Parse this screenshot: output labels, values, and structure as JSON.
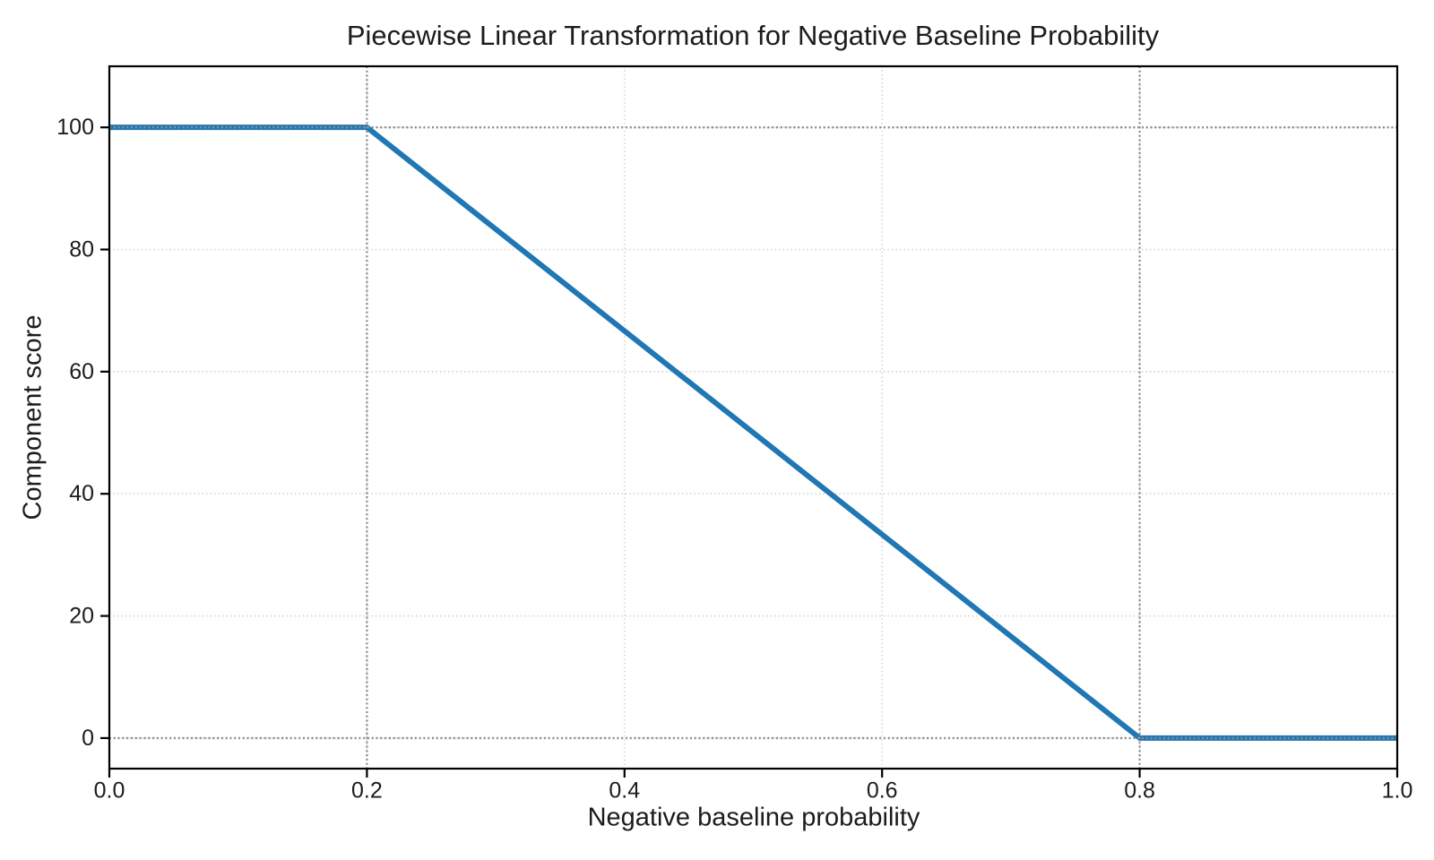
{
  "chart_data": {
    "type": "line",
    "title": "Piecewise Linear Transformation for Negative Baseline Probability",
    "xlabel": "Negative baseline probability",
    "ylabel": "Component score",
    "series": [
      {
        "name": "piecewise-linear-transformation",
        "x": [
          0.0,
          0.2,
          0.8,
          1.0
        ],
        "y": [
          100,
          100,
          0,
          0
        ],
        "color": "#1f77b4",
        "linewidth": 6
      }
    ],
    "xlim": [
      0.0,
      1.0
    ],
    "ylim": [
      -5,
      110
    ],
    "xticks": {
      "values": [
        0.0,
        0.2,
        0.4,
        0.6,
        0.8,
        1.0
      ],
      "labels": [
        "0.0",
        "0.2",
        "0.4",
        "0.6",
        "0.8",
        "1.0"
      ]
    },
    "yticks": {
      "values": [
        0,
        20,
        40,
        60,
        80,
        100
      ],
      "labels": [
        "0",
        "20",
        "40",
        "60",
        "80",
        "100"
      ]
    },
    "grid": {
      "visible": true,
      "style": "dotted",
      "color": "#c6c6c6"
    },
    "reference_lines": {
      "vertical_x": [
        0.2,
        0.8
      ],
      "horizontal_y": [
        0,
        100
      ],
      "style": "dotted",
      "color": "#8e8e8e"
    },
    "legend_position": "none",
    "axis_color": "#000000",
    "text_color": "#1c1c1c",
    "background": "#ffffff"
  }
}
